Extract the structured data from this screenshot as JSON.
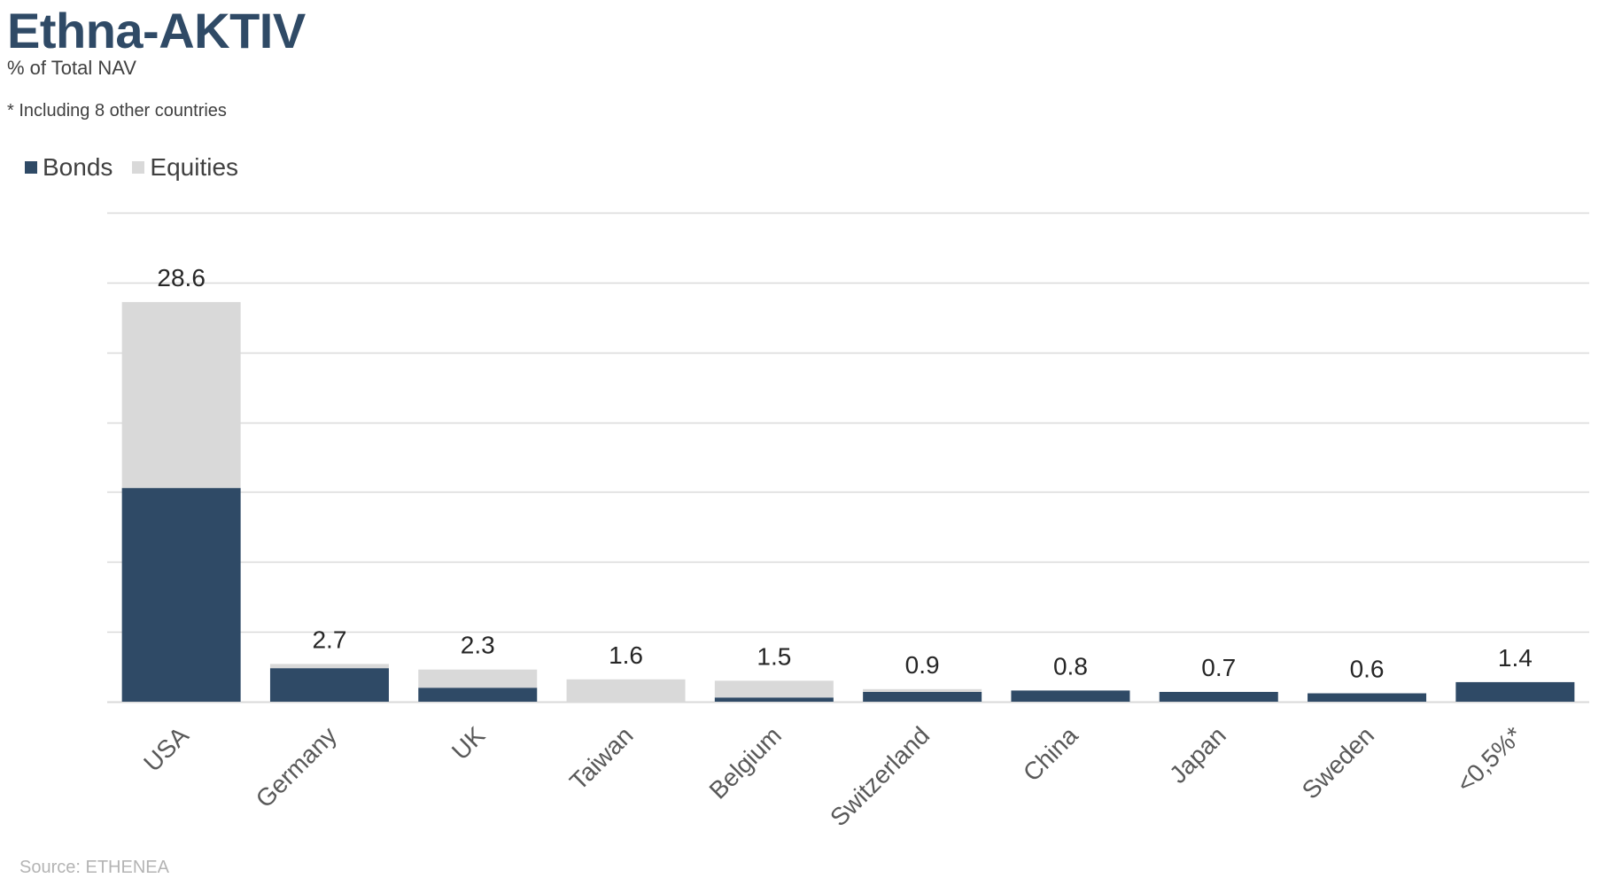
{
  "header": {
    "title": "Ethna-AKTIV",
    "subtitle": "% of Total NAV",
    "note": "* Including 8 other countries"
  },
  "footer": {
    "source": "Source: ETHENEA"
  },
  "colors": {
    "bonds": "#2f4a66",
    "equities": "#d9d9d9",
    "gridline": "#d9d9d9",
    "title": "#2f4a66",
    "text": "#404040",
    "source": "#b4b4b4"
  },
  "chart_data": {
    "type": "bar",
    "stacked": true,
    "categories": [
      "USA",
      "Germany",
      "UK",
      "Taiwan",
      "Belgium",
      "Switzerland",
      "China",
      "Japan",
      "Sweden",
      "<0,5%*"
    ],
    "series": [
      {
        "name": "Bonds",
        "color": "#2f4a66",
        "values": [
          15.3,
          2.4,
          1.0,
          0.0,
          0.3,
          0.7,
          0.8,
          0.7,
          0.6,
          1.4
        ]
      },
      {
        "name": "Equities",
        "color": "#d9d9d9",
        "values": [
          13.3,
          0.3,
          1.3,
          1.6,
          1.2,
          0.2,
          0.0,
          0.0,
          0.0,
          0.0
        ]
      }
    ],
    "totals": [
      "28.6",
      "2.7",
      "2.3",
      "1.6",
      "1.5",
      "0.9",
      "0.8",
      "0.7",
      "0.6",
      "1.4"
    ],
    "title": "Ethna-AKTIV",
    "subtitle": "% of Total NAV",
    "xlabel": "",
    "ylabel": "",
    "ylim": [
      0,
      35
    ],
    "ytick_step": 5,
    "y_tick_labels_shown": false,
    "grid": true,
    "legend": "top-left",
    "x_label_rotation": -45
  }
}
